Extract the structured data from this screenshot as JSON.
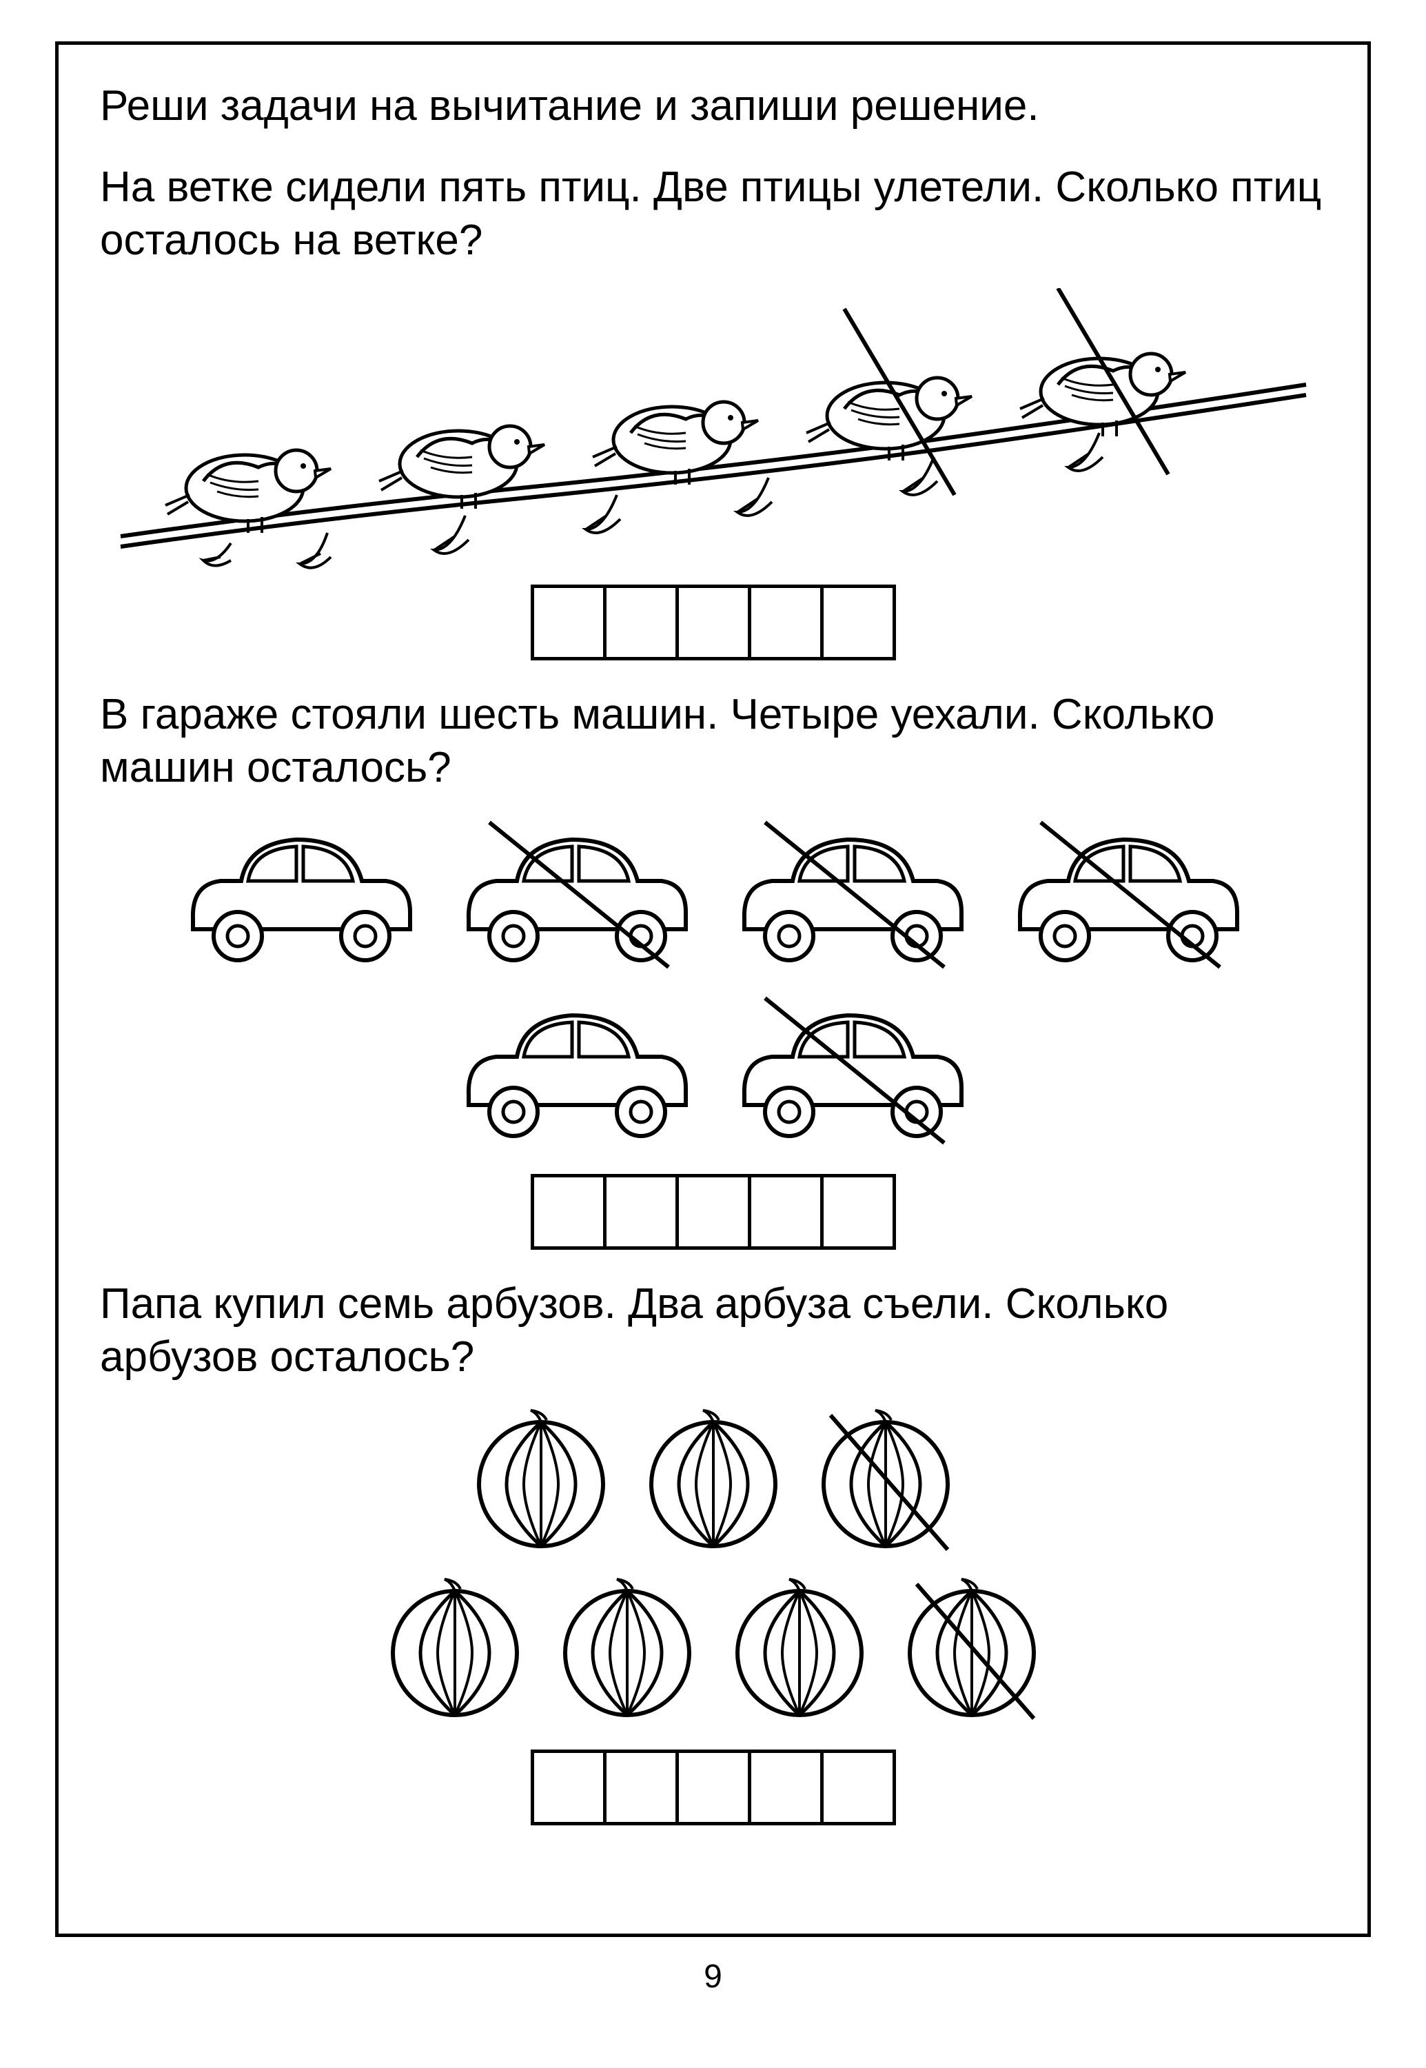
{
  "page_number": "9",
  "instruction": "Реши задачи на вычитание и запиши решение.",
  "problems": [
    {
      "text": "На ветке сидели пять птиц. Две птицы улетели. Сколько птиц осталось на ветке?",
      "type": "birds",
      "total": 5,
      "crossed": [
        3,
        4
      ],
      "answer_cells": 5
    },
    {
      "text": "В гараже стояли шесть машин. Четыре уехали. Сколько машин осталось?",
      "type": "cars",
      "rows": [
        {
          "count": 4,
          "crossed": [
            1,
            2,
            3
          ]
        },
        {
          "count": 2,
          "crossed": [
            1
          ]
        }
      ],
      "answer_cells": 5
    },
    {
      "text": "Папа купил семь арбузов. Два арбуза съели. Сколько арбузов осталось?",
      "type": "watermelons",
      "rows": [
        {
          "count": 3,
          "crossed": [
            2
          ]
        },
        {
          "count": 4,
          "crossed": [
            3
          ]
        }
      ],
      "answer_cells": 5
    }
  ],
  "colors": {
    "stroke": "#000000",
    "background": "#ffffff"
  }
}
